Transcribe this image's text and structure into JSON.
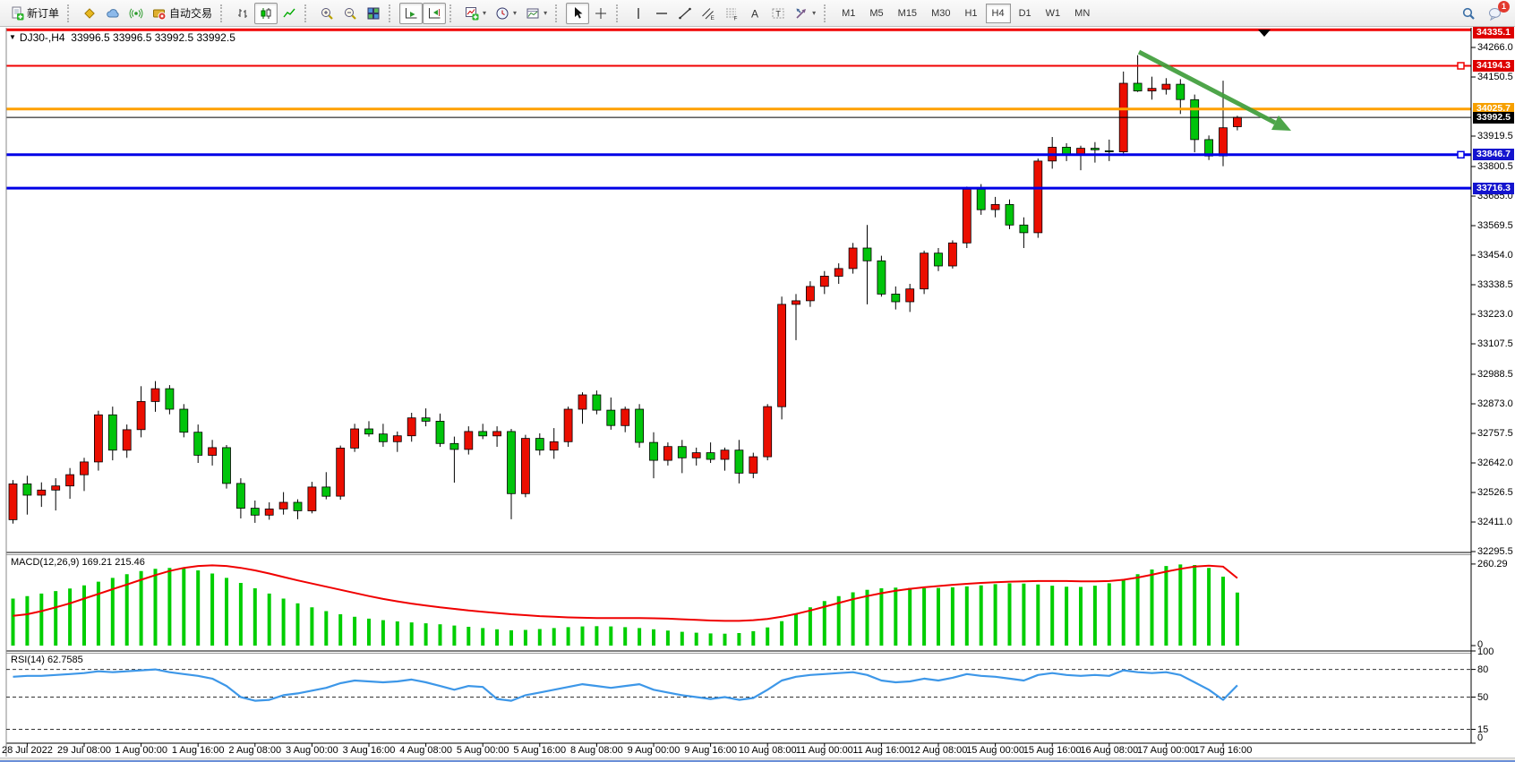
{
  "toolbar": {
    "items": [
      {
        "type": "button",
        "name": "new-order-button",
        "icon": "new-order-icon",
        "label": "新订单"
      },
      {
        "type": "sep"
      },
      {
        "type": "button",
        "name": "market-button",
        "icon": "gold-cube-icon"
      },
      {
        "type": "button",
        "name": "community-button",
        "icon": "cloud-icon"
      },
      {
        "type": "button",
        "name": "signals-button",
        "icon": "signal-icon"
      },
      {
        "type": "button",
        "name": "autotrading-button",
        "icon": "autotrading-icon",
        "label": "自动交易"
      },
      {
        "type": "sep"
      },
      {
        "type": "button",
        "name": "bar-chart-button",
        "icon": "bar-chart-icon"
      },
      {
        "type": "button",
        "name": "candlestick-chart-button",
        "icon": "candlestick-icon",
        "pressed": true
      },
      {
        "type": "button",
        "name": "line-chart-button",
        "icon": "line-chart-icon"
      },
      {
        "type": "sep"
      },
      {
        "type": "button",
        "name": "zoom-in-button",
        "icon": "zoom-in-icon"
      },
      {
        "type": "button",
        "name": "zoom-out-button",
        "icon": "zoom-out-icon"
      },
      {
        "type": "button",
        "name": "tile-windows-button",
        "icon": "tile-windows-icon"
      },
      {
        "type": "sep"
      },
      {
        "type": "button",
        "name": "auto-scroll-button",
        "icon": "auto-scroll-icon",
        "pressed": true
      },
      {
        "type": "button",
        "name": "chart-shift-button",
        "icon": "chart-shift-icon",
        "pressed": true
      },
      {
        "type": "sep"
      },
      {
        "type": "button",
        "name": "indicators-button",
        "icon": "indicators-icon",
        "dropdown": true
      },
      {
        "type": "button",
        "name": "periods-button",
        "icon": "clock-icon",
        "dropdown": true
      },
      {
        "type": "button",
        "name": "templates-button",
        "icon": "template-icon",
        "dropdown": true
      },
      {
        "type": "sep"
      },
      {
        "type": "button",
        "name": "cursor-button",
        "icon": "cursor-icon",
        "pressed": true
      },
      {
        "type": "button",
        "name": "crosshair-button",
        "icon": "crosshair-icon"
      },
      {
        "type": "sep"
      },
      {
        "type": "button",
        "name": "vertical-line-button",
        "icon": "vline-icon"
      },
      {
        "type": "button",
        "name": "horizontal-line-button",
        "icon": "hline-icon"
      },
      {
        "type": "button",
        "name": "trendline-button",
        "icon": "trendline-icon"
      },
      {
        "type": "button",
        "name": "equidistant-channel-button",
        "icon": "channel-icon"
      },
      {
        "type": "button",
        "name": "fibonacci-button",
        "icon": "fibonacci-icon"
      },
      {
        "type": "button",
        "name": "text-button",
        "icon": "text-icon"
      },
      {
        "type": "button",
        "name": "text-label-button",
        "icon": "text-label-icon"
      },
      {
        "type": "button",
        "name": "shapes-button",
        "icon": "shapes-icon",
        "dropdown": true
      },
      {
        "type": "sep"
      }
    ],
    "timeframes": [
      "M1",
      "M5",
      "M15",
      "M30",
      "H1",
      "H4",
      "D1",
      "W1",
      "MN"
    ],
    "active_timeframe": "H4",
    "right_items": [
      {
        "name": "search-button",
        "icon": "search-icon"
      },
      {
        "name": "chat-button",
        "icon": "chat-icon",
        "badge": "1"
      }
    ]
  },
  "chart": {
    "header": {
      "marker": "▼",
      "symbol_period": "DJ30-,H4",
      "open": "33996.5",
      "high": "33996.5",
      "low": "33992.5",
      "close": "33992.5"
    },
    "price_axis_ticks": [
      "34266.0",
      "34150.5",
      "33919.5",
      "33800.5",
      "33685.0",
      "33569.5",
      "33454.0",
      "33338.5",
      "33223.0",
      "33107.5",
      "32988.5",
      "32873.0",
      "32757.5",
      "32642.0",
      "32526.5",
      "32411.0",
      "32295.5"
    ],
    "price_tags": [
      {
        "text": "34335.1",
        "price": 34335.1,
        "bg": "#de0000"
      },
      {
        "text": "34194.3",
        "price": 34194.3,
        "bg": "#de0000"
      },
      {
        "text": "34025.7",
        "price": 34025.7,
        "bg": "#f7a000"
      },
      {
        "text": "33992.5",
        "price": 33992.5,
        "bg": "#000000"
      },
      {
        "text": "33846.7",
        "price": 33846.7,
        "bg": "#1414ce"
      },
      {
        "text": "33716.3",
        "price": 33716.3,
        "bg": "#1414ce"
      }
    ],
    "levels": [
      {
        "price": 34335.1,
        "color": "#f00000",
        "width": 3,
        "handle": false
      },
      {
        "price": 34194.3,
        "color": "#f00000",
        "width": 2,
        "handle": true
      },
      {
        "price": 34025.7,
        "color": "#ffa000",
        "width": 3,
        "handle": false
      },
      {
        "price": 33992.5,
        "color": "#000000",
        "width": 1,
        "handle": false
      },
      {
        "price": 33846.7,
        "color": "#0000e6",
        "width": 3,
        "handle": true
      },
      {
        "price": 33716.3,
        "color": "#0000e6",
        "width": 3,
        "handle": false
      }
    ],
    "time_labels": [
      "28 Jul 2022",
      "29 Jul 08:00",
      "1 Aug 00:00",
      "1 Aug 16:00",
      "2 Aug 08:00",
      "3 Aug 00:00",
      "3 Aug 16:00",
      "4 Aug 08:00",
      "5 Aug 00:00",
      "5 Aug 16:00",
      "8 Aug 08:00",
      "9 Aug 00:00",
      "9 Aug 16:00",
      "10 Aug 08:00",
      "11 Aug 00:00",
      "11 Aug 16:00",
      "12 Aug 08:00",
      "15 Aug 00:00",
      "15 Aug 16:00",
      "16 Aug 08:00",
      "17 Aug 00:00",
      "17 Aug 16:00"
    ],
    "macd_label": {
      "name": "MACD(12,26,9)",
      "main": "169.21",
      "signal": "215.46"
    },
    "macd_axis": [
      "260.29",
      "0"
    ],
    "rsi_label": {
      "name": "RSI(14)",
      "value": "62.7585"
    },
    "rsi_axis": [
      "100",
      "80",
      "50",
      "15",
      "0"
    ],
    "colors": {
      "up": "#eb0e00",
      "down": "#00c40b",
      "macd_hist": "#00ce00",
      "macd_signal": "#f00000",
      "rsi": "#3d97e8",
      "arrow": "#3f9e3b"
    }
  },
  "chart_data": {
    "type": "candlestick",
    "symbol": "DJ30-",
    "timeframe": "H4",
    "title": "DJ30-,H4 33996.5 33996.5 33992.5 33992.5",
    "x_labels": [
      "28 Jul 2022",
      "29 Jul 08:00",
      "1 Aug 00:00",
      "1 Aug 16:00",
      "2 Aug 08:00",
      "3 Aug 00:00",
      "3 Aug 16:00",
      "4 Aug 08:00",
      "5 Aug 00:00",
      "5 Aug 16:00",
      "8 Aug 08:00",
      "9 Aug 00:00",
      "9 Aug 16:00",
      "10 Aug 08:00",
      "11 Aug 00:00",
      "11 Aug 16:00",
      "12 Aug 08:00",
      "15 Aug 00:00",
      "15 Aug 16:00",
      "16 Aug 08:00",
      "17 Aug 00:00",
      "17 Aug 16:00"
    ],
    "y_range_main": [
      32295.5,
      34335.1
    ],
    "levels": [
      34335.1,
      34194.3,
      34025.7,
      33992.5,
      33846.7,
      33716.3
    ],
    "candles": [
      [
        32420,
        32575,
        32405,
        32560
      ],
      [
        32560,
        32592,
        32440,
        32516
      ],
      [
        32516,
        32566,
        32470,
        32536
      ],
      [
        32536,
        32582,
        32456,
        32552
      ],
      [
        32552,
        32622,
        32502,
        32596
      ],
      [
        32596,
        32662,
        32532,
        32646
      ],
      [
        32646,
        32846,
        32612,
        32830
      ],
      [
        32830,
        32862,
        32652,
        32692
      ],
      [
        32692,
        32792,
        32662,
        32772
      ],
      [
        32772,
        32942,
        32742,
        32882
      ],
      [
        32882,
        32962,
        32842,
        32932
      ],
      [
        32932,
        32946,
        32832,
        32852
      ],
      [
        32852,
        32872,
        32742,
        32762
      ],
      [
        32762,
        32792,
        32642,
        32672
      ],
      [
        32672,
        32732,
        32632,
        32702
      ],
      [
        32702,
        32712,
        32542,
        32562
      ],
      [
        32562,
        32582,
        32425,
        32465
      ],
      [
        32465,
        32495,
        32408,
        32438
      ],
      [
        32438,
        32488,
        32420,
        32462
      ],
      [
        32462,
        32528,
        32440,
        32488
      ],
      [
        32488,
        32500,
        32422,
        32455
      ],
      [
        32455,
        32568,
        32445,
        32548
      ],
      [
        32548,
        32606,
        32500,
        32512
      ],
      [
        32512,
        32710,
        32498,
        32700
      ],
      [
        32700,
        32795,
        32685,
        32775
      ],
      [
        32775,
        32805,
        32745,
        32755
      ],
      [
        32755,
        32795,
        32705,
        32725
      ],
      [
        32725,
        32765,
        32685,
        32748
      ],
      [
        32748,
        32838,
        32725,
        32818
      ],
      [
        32818,
        32855,
        32785,
        32805
      ],
      [
        32805,
        32835,
        32705,
        32718
      ],
      [
        32718,
        32745,
        32565,
        32695
      ],
      [
        32695,
        32785,
        32675,
        32765
      ],
      [
        32765,
        32795,
        32735,
        32748
      ],
      [
        32748,
        32785,
        32705,
        32765
      ],
      [
        32765,
        32775,
        32422,
        32522
      ],
      [
        32522,
        32752,
        32508,
        32738
      ],
      [
        32738,
        32758,
        32672,
        32692
      ],
      [
        32692,
        32778,
        32658,
        32725
      ],
      [
        32725,
        32862,
        32705,
        32852
      ],
      [
        32852,
        32918,
        32795,
        32908
      ],
      [
        32908,
        32925,
        32832,
        32848
      ],
      [
        32848,
        32898,
        32772,
        32788
      ],
      [
        32788,
        32862,
        32762,
        32852
      ],
      [
        32852,
        32872,
        32702,
        32722
      ],
      [
        32722,
        32762,
        32582,
        32652
      ],
      [
        32652,
        32722,
        32632,
        32706
      ],
      [
        32706,
        32732,
        32602,
        32662
      ],
      [
        32662,
        32702,
        32632,
        32682
      ],
      [
        32682,
        32722,
        32642,
        32656
      ],
      [
        32656,
        32702,
        32612,
        32692
      ],
      [
        32692,
        32732,
        32562,
        32602
      ],
      [
        32602,
        32682,
        32582,
        32666
      ],
      [
        32666,
        32872,
        32652,
        32862
      ],
      [
        32862,
        33292,
        32812,
        33262
      ],
      [
        33262,
        33302,
        33122,
        33276
      ],
      [
        33276,
        33352,
        33252,
        33332
      ],
      [
        33332,
        33392,
        33302,
        33372
      ],
      [
        33372,
        33422,
        33342,
        33402
      ],
      [
        33402,
        33502,
        33382,
        33482
      ],
      [
        33482,
        33572,
        33262,
        33432
      ],
      [
        33432,
        33452,
        33292,
        33302
      ],
      [
        33302,
        33332,
        33242,
        33272
      ],
      [
        33272,
        33342,
        33232,
        33322
      ],
      [
        33322,
        33472,
        33302,
        33462
      ],
      [
        33462,
        33482,
        33392,
        33412
      ],
      [
        33412,
        33512,
        33402,
        33502
      ],
      [
        33502,
        33722,
        33482,
        33712
      ],
      [
        33712,
        33732,
        33612,
        33632
      ],
      [
        33632,
        33682,
        33602,
        33652
      ],
      [
        33652,
        33672,
        33556,
        33572
      ],
      [
        33572,
        33602,
        33482,
        33542
      ],
      [
        33542,
        33832,
        33522,
        33822
      ],
      [
        33822,
        33916,
        33792,
        33876
      ],
      [
        33876,
        33892,
        33822,
        33846
      ],
      [
        33846,
        33882,
        33786,
        33872
      ],
      [
        33872,
        33896,
        33816,
        33866
      ],
      [
        33862,
        33906,
        33822,
        33858
      ],
      [
        33858,
        34172,
        33842,
        34126
      ],
      [
        34126,
        34236,
        34092,
        34096
      ],
      [
        34096,
        34152,
        34062,
        34106
      ],
      [
        34102,
        34146,
        34082,
        34122
      ],
      [
        34122,
        34142,
        34006,
        34062
      ],
      [
        34062,
        34082,
        33856,
        33906
      ],
      [
        33906,
        33922,
        33826,
        33842
      ],
      [
        33842,
        34136,
        33802,
        33952
      ],
      [
        33956,
        33999,
        33942,
        33992.5
      ]
    ],
    "series": [
      {
        "name": "MACD histogram",
        "range": [
          0,
          260.29
        ],
        "values": [
          150,
          158,
          166,
          174,
          182,
          192,
          204,
          216,
          228,
          238,
          245,
          248,
          246,
          240,
          230,
          216,
          200,
          183,
          166,
          150,
          135,
          122,
          110,
          100,
          92,
          86,
          81,
          77,
          74,
          71,
          68,
          64,
          60,
          56,
          52,
          49,
          50,
          53,
          56,
          59,
          61,
          62,
          61,
          59,
          56,
          52,
          48,
          44,
          41,
          39,
          38,
          40,
          46,
          58,
          78,
          100,
          122,
          142,
          158,
          170,
          178,
          183,
          185,
          184,
          183,
          184,
          186,
          189,
          192,
          196,
          199,
          198,
          195,
          191,
          188,
          187,
          191,
          199,
          212,
          228,
          243,
          254,
          259,
          257,
          248,
          220,
          169.21
        ]
      },
      {
        "name": "MACD signal",
        "range": [
          0,
          260.29
        ],
        "values": [
          95,
          100,
          110,
          122,
          135,
          150,
          165,
          180,
          195,
          210,
          225,
          238,
          248,
          254,
          256,
          254,
          248,
          240,
          230,
          219,
          208,
          198,
          188,
          178,
          168,
          158,
          149,
          141,
          134,
          128,
          122,
          117,
          112,
          108,
          104,
          100,
          97,
          94,
          92,
          90,
          89,
          88,
          88,
          88,
          88,
          87,
          86,
          84,
          82,
          80,
          79,
          79,
          81,
          85,
          92,
          101,
          112,
          124,
          136,
          148,
          158,
          167,
          175,
          181,
          186,
          190,
          194,
          197,
          200,
          202,
          204,
          205,
          206,
          206,
          206,
          205,
          205,
          206,
          210,
          217,
          226,
          236,
          245,
          252,
          255,
          252,
          215.46
        ]
      },
      {
        "name": "RSI",
        "range": [
          0,
          100
        ],
        "levels": [
          80,
          50,
          15
        ],
        "values": [
          72,
          73,
          73,
          74,
          75,
          76,
          78,
          77,
          78,
          79,
          80,
          77,
          75,
          73,
          70,
          62,
          50,
          46,
          47,
          52,
          54,
          57,
          60,
          65,
          68,
          67,
          66,
          67,
          69,
          66,
          62,
          58,
          62,
          61,
          48,
          46,
          52,
          55,
          58,
          61,
          64,
          62,
          60,
          62,
          64,
          58,
          55,
          52,
          50,
          48,
          50,
          47,
          49,
          58,
          68,
          72,
          74,
          75,
          76,
          77,
          74,
          68,
          66,
          67,
          70,
          68,
          71,
          75,
          73,
          72,
          70,
          68,
          74,
          76,
          74,
          73,
          74,
          73,
          79,
          77,
          76,
          77,
          74,
          66,
          58,
          47,
          62.7585
        ]
      }
    ]
  }
}
